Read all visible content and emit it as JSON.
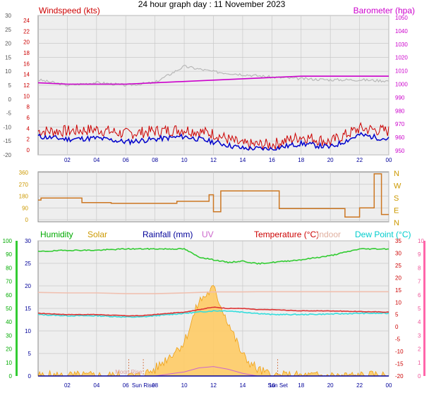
{
  "title": "24 hour graph day : 11 November 2023",
  "colors": {
    "windspeed": "#cc0000",
    "barometer": "#cc00cc",
    "humidity": "#00aa00",
    "solar": "#cc9900",
    "rainfall": "#000099",
    "uv": "#cc66cc",
    "temperature": "#cc0000",
    "indoor": "#e0b0a0",
    "dewpoint": "#00cccc",
    "grid": "#c8c8c8",
    "plot_bg": "#eeeeee"
  },
  "time_ticks": [
    "02",
    "04",
    "06",
    "08",
    "10",
    "12",
    "14",
    "16",
    "18",
    "20",
    "22",
    "00"
  ],
  "top_panel": {
    "left_label": "Windspeed (kts)",
    "right_label": "Barometer (hpa)",
    "outer_left_ticks": [
      "30",
      "25",
      "20",
      "15",
      "10",
      "5",
      "0",
      "-5",
      "-10",
      "-15",
      "-20"
    ],
    "inner_left_ticks": [
      "24",
      "22",
      "20",
      "18",
      "16",
      "14",
      "12",
      "10",
      "8",
      "6",
      "4",
      "2",
      "0"
    ],
    "right_ticks": [
      "1050",
      "1040",
      "1030",
      "1020",
      "1010",
      "1000",
      "990",
      "980",
      "970",
      "960",
      "950"
    ]
  },
  "mid_panel": {
    "left_ticks": [
      "360",
      "270",
      "180",
      "90",
      "0"
    ],
    "right_labels": [
      "N",
      "W",
      "S",
      "E",
      "N"
    ]
  },
  "bottom_panel": {
    "legend": {
      "humidity": "Humidity",
      "solar": "Solar",
      "rainfall": "Rainfall (mm)",
      "uv": "UV",
      "temperature": "Temperature (°C)",
      "indoor": "Indoor",
      "dewpoint": "Dew Point (°C)"
    },
    "outer_left_ticks": [
      "100",
      "90",
      "80",
      "70",
      "60",
      "50",
      "40",
      "30",
      "20",
      "10",
      "0"
    ],
    "inner_left_ticks": [
      "30",
      "25",
      "20",
      "15",
      "10",
      "5",
      "0"
    ],
    "right_ticks": [
      "35",
      "30",
      "25",
      "20",
      "15",
      "10",
      "5",
      "0",
      "-5",
      "-10",
      "-15",
      "-20"
    ],
    "far_right_ticks": [
      "10",
      "9",
      "8",
      "7",
      "6",
      "5",
      "4",
      "3",
      "2",
      "1",
      "0"
    ],
    "markers": {
      "moon_rise": "Moon Rise",
      "sun_rise": "Sun Rise",
      "sun_set": "Sun Set"
    }
  },
  "chart_data": [
    {
      "type": "line",
      "title": "24 hour graph day : 11 November 2023",
      "xlabel": "",
      "x_hours": [
        0,
        2,
        4,
        6,
        8,
        10,
        12,
        14,
        16,
        18,
        20,
        22,
        24
      ],
      "series": [
        {
          "name": "Windspeed (kts)",
          "y": [
            2.5,
            2,
            2.2,
            1.5,
            2,
            2.5,
            1.5,
            0.3,
            0.2,
            1.2,
            0.5,
            2.8,
            2
          ]
        },
        {
          "name": "Barometer (hpa)",
          "y": [
            1001,
            1000,
            1000,
            1000,
            1001,
            1002,
            1003,
            1004,
            1005,
            1006,
            1006,
            1006,
            1006
          ]
        }
      ],
      "wind_gust": [
        3.5,
        3.5,
        3.8,
        3,
        3.5,
        3.8,
        3,
        1,
        1,
        2.5,
        1.5,
        4,
        3.5
      ],
      "indoor_trace": [
        13,
        12,
        12.5,
        12,
        12.5,
        15.5,
        14.5,
        14,
        13.5,
        13.2,
        13,
        13,
        12.8
      ],
      "ylim_windspeed": [
        0,
        25
      ],
      "ylim_barometer": [
        950,
        1050
      ],
      "grid": true,
      "legend": "top"
    },
    {
      "type": "line",
      "title": "",
      "ylabel": "Wind direction",
      "x_hours": [
        0,
        0.2,
        3,
        5,
        8,
        9.5,
        11.7,
        12,
        12.5,
        16,
        16.5,
        20,
        21,
        22,
        23,
        23.5,
        24
      ],
      "series": [
        {
          "name": "Direction",
          "y": [
            150,
            165,
            130,
            125,
            125,
            140,
            190,
            60,
            220,
            220,
            85,
            85,
            20,
            90,
            350,
            40,
            40
          ]
        }
      ],
      "ylim": [
        0,
        360
      ],
      "grid": true
    },
    {
      "type": "line",
      "title": "",
      "x_hours": [
        0,
        2,
        4,
        6,
        7,
        8,
        10,
        11,
        12,
        13,
        14,
        15,
        16,
        18,
        20,
        22,
        24
      ],
      "series": [
        {
          "name": "Humidity",
          "y": [
            92,
            93,
            93,
            94,
            94,
            94,
            94,
            88,
            86,
            84,
            85,
            83,
            84,
            86,
            89,
            94,
            94
          ]
        },
        {
          "name": "Temperature (°C)",
          "y": [
            5.5,
            5,
            5,
            4.5,
            4.5,
            5,
            6,
            7,
            8,
            7.5,
            7.5,
            7,
            7,
            6.5,
            6.5,
            6.2,
            6
          ]
        },
        {
          "name": "Dew Point (°C)",
          "y": [
            5,
            4.5,
            4.5,
            4,
            4,
            4.5,
            5.5,
            6,
            6.5,
            6.5,
            6,
            5.5,
            5,
            5,
            5.2,
            5.5,
            5.5
          ]
        },
        {
          "name": "Indoor",
          "y": [
            14,
            13.8,
            13.8,
            13.5,
            13.5,
            13.5,
            13.8,
            14,
            14.2,
            14.2,
            14.2,
            14.3,
            14.3,
            14.3,
            14.3,
            14.3,
            14.3
          ]
        },
        {
          "name": "Solar",
          "y": [
            0,
            0,
            0,
            0,
            0,
            5,
            25,
            55,
            65,
            40,
            15,
            5,
            0,
            0,
            0,
            0,
            0
          ]
        },
        {
          "name": "UV",
          "y": [
            0,
            0,
            0,
            0,
            0,
            0,
            0.3,
            0.6,
            0.7,
            0.5,
            0.2,
            0,
            0,
            0,
            0,
            0,
            0
          ]
        },
        {
          "name": "Rainfall (mm)",
          "y": [
            0,
            0,
            0,
            0,
            0,
            0,
            0,
            0,
            0,
            0,
            0,
            0,
            0,
            0,
            0,
            0,
            0
          ]
        }
      ],
      "ylim_humidity": [
        0,
        100
      ],
      "ylim_temperature": [
        -20,
        35
      ],
      "ylim_uv": [
        0,
        10
      ],
      "markers_hours": {
        "Moon Rise": 6.2,
        "Sun Rise": 7.2,
        "Sun Set": 16.4
      },
      "grid": true,
      "legend": "top"
    }
  ]
}
